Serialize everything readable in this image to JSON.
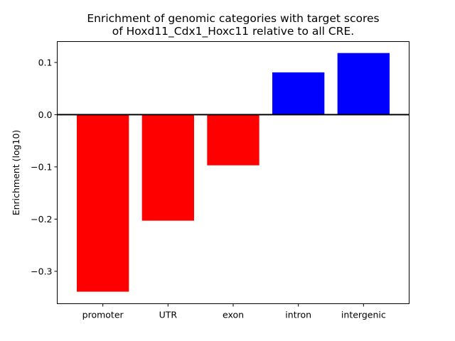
{
  "chart_data": {
    "type": "bar",
    "title_lines": [
      "Enrichment of genomic categories with target scores",
      "of Hoxd11_Cdx1_Hoxc11 relative to all CRE."
    ],
    "xlabel": "",
    "ylabel": "Enrichment (log10)",
    "categories": [
      "promoter",
      "UTR",
      "exon",
      "intron",
      "intergenic"
    ],
    "values": [
      -0.339,
      -0.203,
      -0.097,
      0.081,
      0.118
    ],
    "colors": [
      "#ff0000",
      "#ff0000",
      "#ff0000",
      "#0000ff",
      "#0000ff"
    ],
    "ylim": [
      -0.362,
      0.14
    ],
    "yticks": [
      0.1,
      0.0,
      -0.1,
      -0.2,
      -0.3
    ],
    "ytick_labels": [
      "0.1",
      "0.0",
      "−0.1",
      "−0.2",
      "−0.3"
    ],
    "zero_line": true,
    "grid": false
  }
}
